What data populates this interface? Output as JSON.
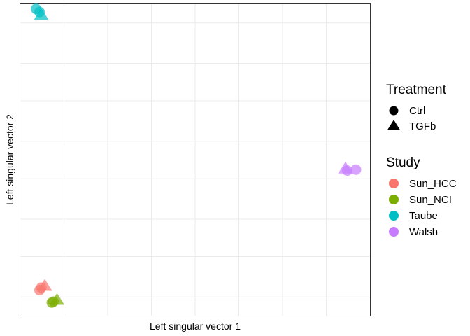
{
  "chart_data": {
    "type": "scatter",
    "xlabel": "Left singular vector 1",
    "ylabel": "Left singular vector 2",
    "xlim": [
      0,
      1
    ],
    "ylim": [
      0,
      1
    ],
    "x_gridlines": [
      0.125,
      0.25,
      0.375,
      0.5,
      0.625,
      0.75,
      0.875
    ],
    "y_gridlines": [
      0.06,
      0.19,
      0.31,
      0.44,
      0.56,
      0.69,
      0.81,
      0.94
    ],
    "grid": true,
    "point_opacity": 0.7,
    "legends": {
      "shape": {
        "title": "Treatment",
        "entries": [
          {
            "label": "Ctrl",
            "shape": "circle"
          },
          {
            "label": "TGFb",
            "shape": "triangle"
          }
        ]
      },
      "color": {
        "title": "Study",
        "entries": [
          {
            "label": "Sun_HCC",
            "color": "#F8766D"
          },
          {
            "label": "Sun_NCI",
            "color": "#7CAE00"
          },
          {
            "label": "Taube",
            "color": "#00BFC4"
          },
          {
            "label": "Walsh",
            "color": "#C77CFF"
          }
        ]
      }
    },
    "points": [
      {
        "study": "Taube",
        "treatment": "Ctrl",
        "x": 0.045,
        "y": 0.985
      },
      {
        "study": "Taube",
        "treatment": "Ctrl",
        "x": 0.055,
        "y": 0.975
      },
      {
        "study": "Taube",
        "treatment": "TGFb",
        "x": 0.06,
        "y": 0.965
      },
      {
        "study": "Sun_HCC",
        "treatment": "Ctrl",
        "x": 0.055,
        "y": 0.082
      },
      {
        "study": "Sun_HCC",
        "treatment": "Ctrl",
        "x": 0.06,
        "y": 0.09
      },
      {
        "study": "Sun_HCC",
        "treatment": "TGFb",
        "x": 0.07,
        "y": 0.095
      },
      {
        "study": "Sun_NCI",
        "treatment": "Ctrl",
        "x": 0.09,
        "y": 0.042
      },
      {
        "study": "Sun_NCI",
        "treatment": "Ctrl",
        "x": 0.095,
        "y": 0.045
      },
      {
        "study": "Sun_NCI",
        "treatment": "TGFb",
        "x": 0.105,
        "y": 0.05
      },
      {
        "study": "Walsh",
        "treatment": "TGFb",
        "x": 0.93,
        "y": 0.472
      },
      {
        "study": "Walsh",
        "treatment": "Ctrl",
        "x": 0.935,
        "y": 0.466
      },
      {
        "study": "Walsh",
        "treatment": "Ctrl",
        "x": 0.96,
        "y": 0.469
      }
    ]
  }
}
